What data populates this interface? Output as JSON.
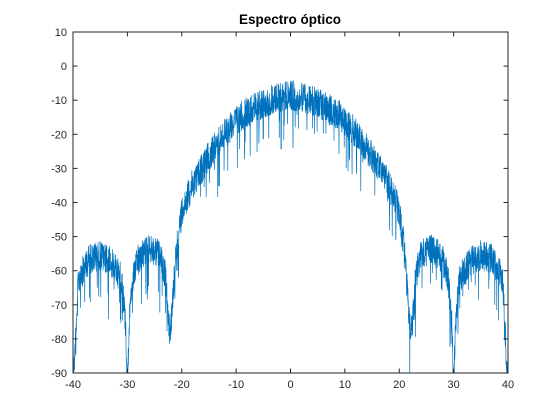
{
  "chart_data": {
    "type": "line",
    "title": "Espectro óptico",
    "xlabel": "",
    "ylabel": "",
    "xlim": [
      -40,
      40
    ],
    "ylim": [
      -90,
      10
    ],
    "grid": false,
    "x_ticks": [
      -40,
      -30,
      -20,
      -10,
      0,
      10,
      20,
      30,
      40
    ],
    "y_ticks": [
      10,
      0,
      -10,
      -20,
      -30,
      -40,
      -50,
      -60,
      -70,
      -80,
      -90
    ],
    "series": [
      {
        "color": "#0072BD",
        "envelope_description_points": {
          "x": [
            -40,
            -39,
            -37,
            -35,
            -33,
            -31,
            -30.3,
            -30,
            -29.7,
            -29,
            -28,
            -26,
            -24,
            -23,
            -22.4,
            -22,
            -21,
            -20,
            -18,
            -15,
            -12,
            -9,
            -6,
            -3,
            0,
            3,
            6,
            9,
            12,
            15,
            18,
            20,
            21,
            22,
            22.4,
            23,
            24,
            26,
            28,
            29,
            29.7,
            30,
            30.3,
            31,
            33,
            35,
            37,
            39,
            40
          ],
          "y": [
            -90,
            -58,
            -52,
            -51,
            -53,
            -58,
            -72,
            -90,
            -72,
            -58,
            -52,
            -49,
            -51,
            -57,
            -72,
            -72,
            -50,
            -38,
            -30,
            -22,
            -15,
            -10,
            -7,
            -5,
            -4,
            -5,
            -7,
            -10,
            -15,
            -22,
            -30,
            -38,
            -50,
            -72,
            -72,
            -57,
            -51,
            -49,
            -52,
            -58,
            -72,
            -90,
            -72,
            -58,
            -53,
            -51,
            -52,
            -58,
            -90
          ]
        }
      }
    ]
  }
}
